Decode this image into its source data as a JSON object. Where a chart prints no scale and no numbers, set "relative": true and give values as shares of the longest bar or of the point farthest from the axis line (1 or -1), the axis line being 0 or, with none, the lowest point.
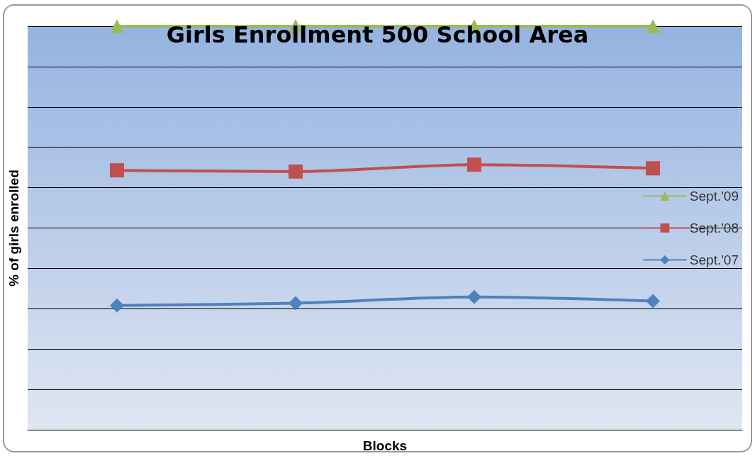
{
  "chart_data": {
    "type": "line",
    "title": "Girls Enrollment 500 School Area",
    "xlabel": "Blocks",
    "ylabel": "% of girls enrolled",
    "relative": true,
    "categories": [
      null,
      null,
      null,
      null
    ],
    "grid": "y",
    "legend": "right",
    "line_style": "solid",
    "series": [
      {
        "name": "Sept.'09",
        "color": "#9bbb59",
        "marker": "triangle",
        "values": [
          1,
          1,
          1,
          1
        ]
      },
      {
        "name": "Sept.'08",
        "color": "#c0504d",
        "marker": "square",
        "values": [
          0.643,
          0.64,
          0.657,
          0.648
        ]
      },
      {
        "name": "Sept.'07",
        "color": "#4f81bd",
        "marker": "diamond",
        "values": [
          0.308,
          0.314,
          0.329,
          0.319
        ]
      }
    ]
  }
}
